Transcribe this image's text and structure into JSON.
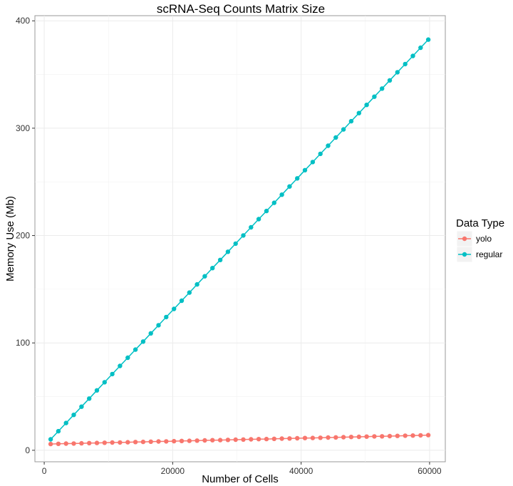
{
  "chart_data": {
    "type": "line",
    "title": "scRNA-Seq Counts Matrix Size",
    "xlabel": "Number of Cells",
    "ylabel": "Memory Use (Mb)",
    "xlim": [
      -1450,
      62450
    ],
    "ylim": [
      -10.7,
      404.8
    ],
    "xticks": [
      0,
      20000,
      40000,
      60000
    ],
    "xtick_labels": [
      "0",
      "20000",
      "40000",
      "60000"
    ],
    "yticks": [
      0,
      100,
      200,
      300,
      400
    ],
    "ytick_labels": [
      "0",
      "100",
      "200",
      "300",
      "400"
    ],
    "grid": true,
    "legend": {
      "title": "Data Type",
      "position": "right"
    },
    "x": [
      1000,
      2200,
      3400,
      4600,
      5800,
      7000,
      8200,
      9400,
      10600,
      11800,
      13000,
      14200,
      15400,
      16600,
      17800,
      19000,
      20200,
      21400,
      22600,
      23800,
      25000,
      26200,
      27400,
      28600,
      29800,
      31000,
      32200,
      33400,
      34600,
      35800,
      37000,
      38200,
      39400,
      40600,
      41800,
      43000,
      44200,
      45400,
      46600,
      47800,
      49000,
      50200,
      51400,
      52600,
      53800,
      55000,
      56200,
      57400,
      58600,
      59800
    ],
    "series": [
      {
        "name": "yolo",
        "color": "#F8766D",
        "values": [
          5.8,
          6.0,
          6.2,
          6.3,
          6.5,
          6.7,
          6.8,
          7.0,
          7.2,
          7.3,
          7.5,
          7.7,
          7.8,
          8.0,
          8.2,
          8.3,
          8.5,
          8.7,
          8.8,
          9.0,
          9.2,
          9.4,
          9.5,
          9.7,
          9.9,
          10.0,
          10.2,
          10.4,
          10.5,
          10.7,
          10.9,
          11.0,
          11.2,
          11.4,
          11.5,
          11.7,
          11.9,
          12.0,
          12.2,
          12.4,
          12.5,
          12.7,
          12.9,
          13.0,
          13.2,
          13.4,
          13.6,
          13.7,
          13.9,
          14.1
        ]
      },
      {
        "name": "regular",
        "color": "#00BFC4",
        "values": [
          10.2,
          17.8,
          25.4,
          33.0,
          40.6,
          48.2,
          55.8,
          63.4,
          71.0,
          78.6,
          86.2,
          93.8,
          101.3,
          108.9,
          116.5,
          124.1,
          131.7,
          139.3,
          146.9,
          154.5,
          162.1,
          169.7,
          177.3,
          184.9,
          192.5,
          200.1,
          207.7,
          215.3,
          222.9,
          230.5,
          238.1,
          245.7,
          253.3,
          260.9,
          268.5,
          276.1,
          283.7,
          291.3,
          298.9,
          306.5,
          314.1,
          321.7,
          329.3,
          336.9,
          344.5,
          352.1,
          359.7,
          367.3,
          374.9,
          382.5
        ]
      }
    ]
  }
}
